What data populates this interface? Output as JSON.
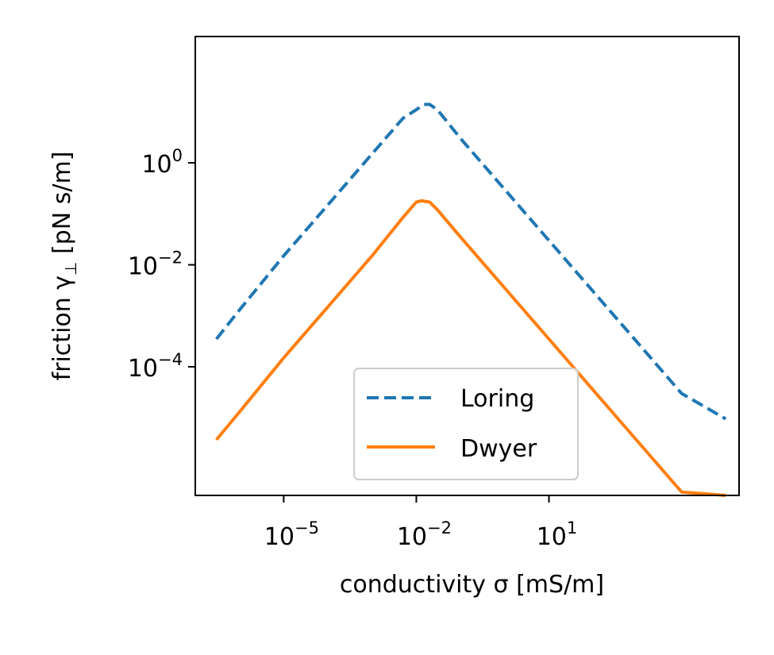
{
  "chart_data": {
    "type": "line",
    "xlabel": "conductivity σ [mS/m]",
    "ylabel_prefix": "friction γ",
    "ylabel_sub": "⊥",
    "ylabel_suffix": " [pN s/m]",
    "xscale": "log",
    "yscale": "log",
    "xlim": [
      1e-07,
      200000.0
    ],
    "ylim": [
      3e-07,
      300
    ],
    "x_ticks": [
      {
        "value": 1e-05,
        "base": "10",
        "exp": "−5"
      },
      {
        "value": 0.01,
        "base": "10",
        "exp": "−2"
      },
      {
        "value": 10,
        "base": "10",
        "exp": "1"
      }
    ],
    "y_ticks": [
      {
        "value": 0.0001,
        "base": "10",
        "exp": "−4"
      },
      {
        "value": 0.01,
        "base": "10",
        "exp": "−2"
      },
      {
        "value": 1,
        "base": "10",
        "exp": "0"
      }
    ],
    "legend_position": "lower-center",
    "series": [
      {
        "name": "Loring",
        "style": "dashed",
        "color": "#1f77b4",
        "x": [
          3e-07,
          1e-06,
          1e-05,
          0.0001,
          0.001,
          0.005,
          0.01,
          0.015,
          0.02,
          0.03,
          0.1,
          1,
          10,
          100,
          1000,
          10000,
          100000
        ],
        "y": [
          0.00035,
          0.0013,
          0.015,
          0.15,
          1.5,
          7.5,
          11,
          14,
          14,
          11,
          3,
          0.3,
          0.03,
          0.003,
          0.0003,
          3e-05,
          9.5e-06
        ]
      },
      {
        "name": "Dwyer",
        "style": "solid",
        "color": "#ff7f0e",
        "x": [
          3e-07,
          1e-06,
          1e-05,
          0.0001,
          0.001,
          0.005,
          0.01,
          0.013,
          0.02,
          0.03,
          0.1,
          1,
          10,
          100,
          1000,
          10000,
          100000
        ],
        "y": [
          3.7e-06,
          1.3e-05,
          0.00015,
          0.0015,
          0.015,
          0.085,
          0.17,
          0.18,
          0.17,
          0.12,
          0.035,
          0.0035,
          0.00035,
          3.5e-05,
          3.5e-06,
          3.5e-07,
          3e-07
        ]
      }
    ]
  }
}
